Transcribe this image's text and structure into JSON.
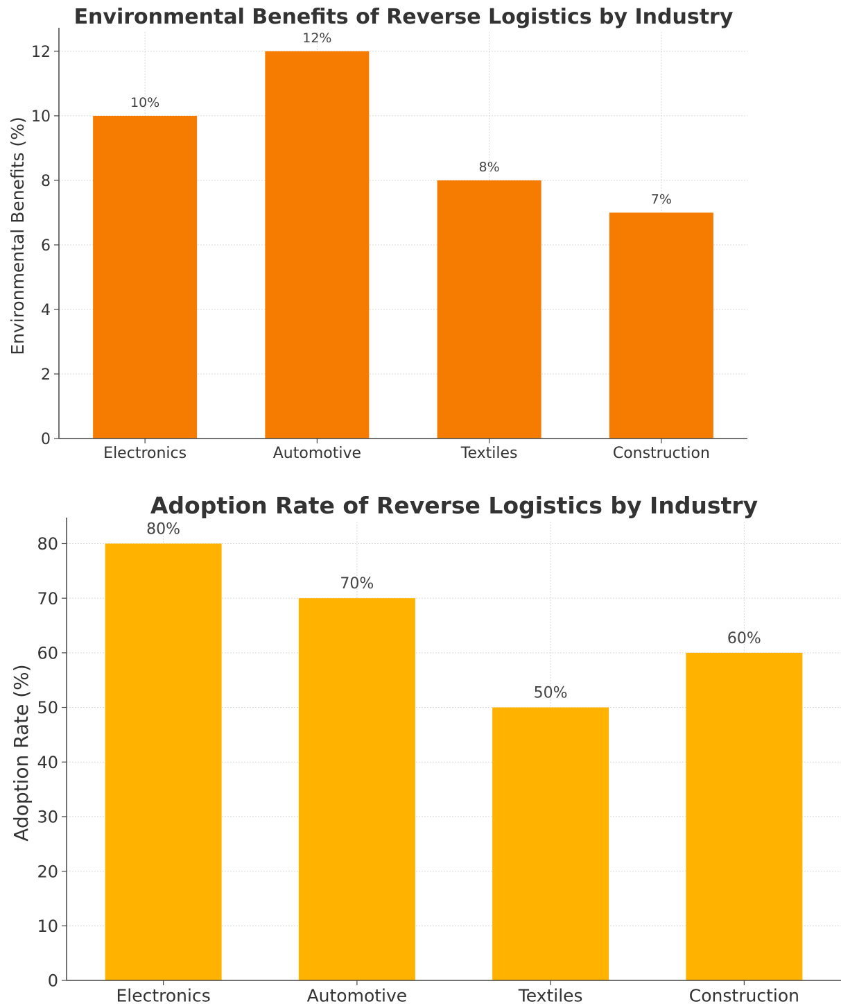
{
  "chart_data": [
    {
      "type": "bar",
      "title": "Environmental Benefits of Reverse Logistics by Industry",
      "xlabel": "",
      "ylabel": "Environmental Benefits (%)",
      "categories": [
        "Electronics",
        "Automotive",
        "Textiles",
        "Construction"
      ],
      "values": [
        10,
        12,
        8,
        7
      ],
      "data_labels": [
        "10%",
        "12%",
        "8%",
        "7%"
      ],
      "ylim": [
        0,
        12.6
      ],
      "yticks": [
        0,
        2,
        4,
        6,
        8,
        10,
        12
      ],
      "grid": true,
      "bar_color": "#F57C00"
    },
    {
      "type": "bar",
      "title": "Adoption Rate of Reverse Logistics by Industry",
      "xlabel": "",
      "ylabel": "Adoption Rate (%)",
      "categories": [
        "Electronics",
        "Automotive",
        "Textiles",
        "Construction"
      ],
      "values": [
        80,
        70,
        50,
        60
      ],
      "data_labels": [
        "80%",
        "70%",
        "50%",
        "60%"
      ],
      "ylim": [
        0,
        84
      ],
      "yticks": [
        0,
        10,
        20,
        30,
        40,
        50,
        60,
        70,
        80
      ],
      "grid": true,
      "bar_color": "#FFB300"
    }
  ]
}
